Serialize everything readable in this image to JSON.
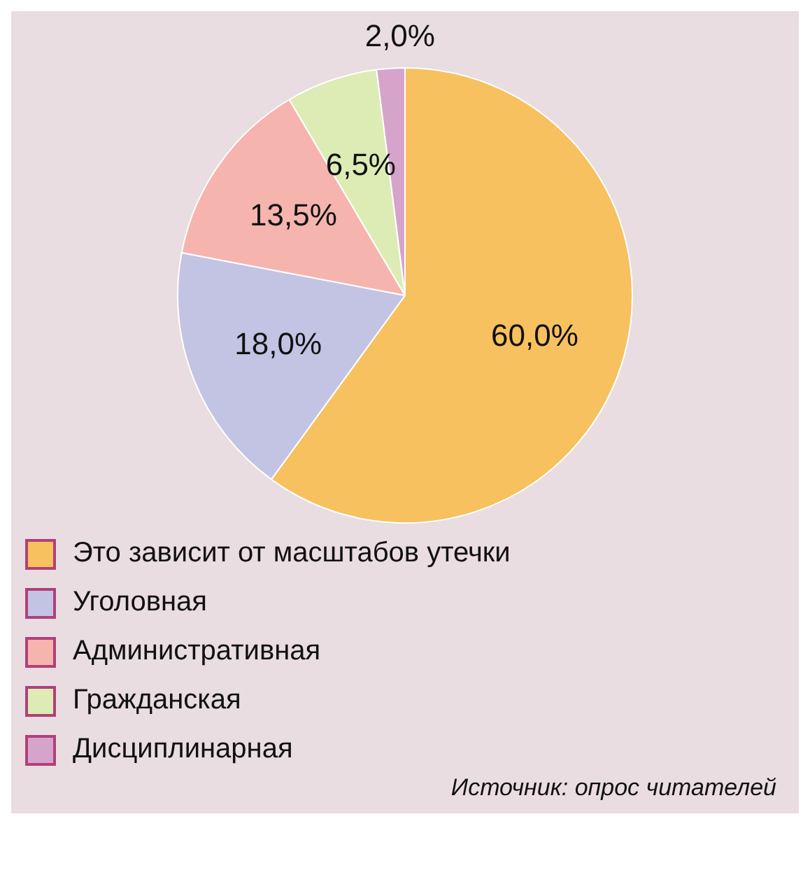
{
  "chart_data": {
    "type": "pie",
    "categories": [
      "Это зависит от масштабов утечки",
      "Уголовная",
      "Административная",
      "Гражданская",
      "Дисциплинарная"
    ],
    "values": [
      60.0,
      18.0,
      13.5,
      6.5,
      2.0
    ],
    "value_labels": [
      "60,0%",
      "18,0%",
      "13,5%",
      "6,5%",
      "2,0%"
    ],
    "colors": [
      "#f6c15e",
      "#c3c4e4",
      "#f6b4ae",
      "#dcecb4",
      "#d6a4cb"
    ],
    "legend": "bottom",
    "annotations": [
      "Источник: опрос читателей"
    ]
  }
}
